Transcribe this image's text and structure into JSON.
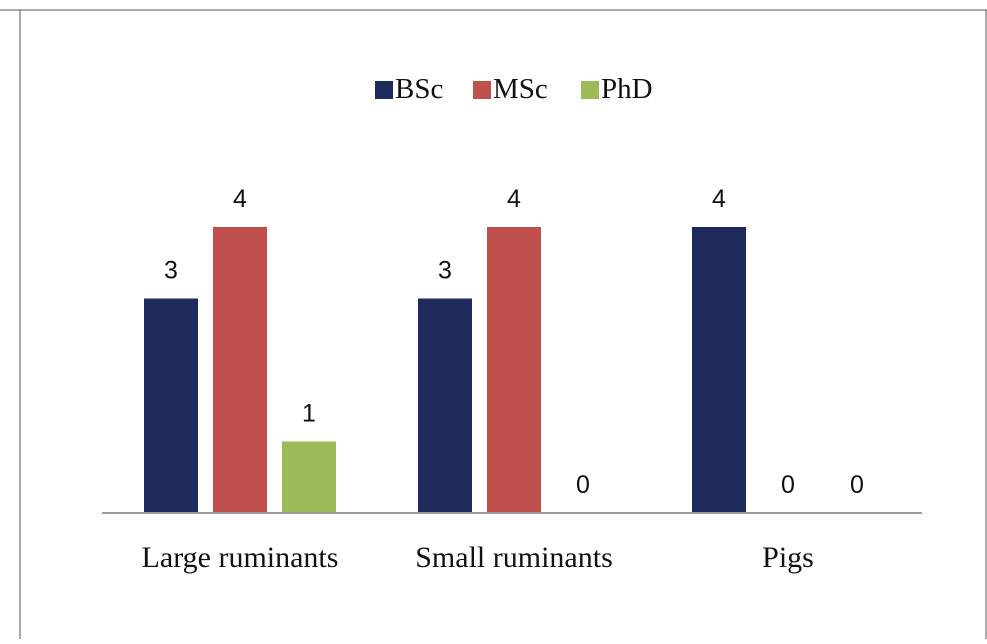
{
  "chart_data": {
    "type": "bar",
    "title": "",
    "xlabel": "",
    "ylabel": "",
    "categories": [
      "Large ruminants",
      "Small ruminants",
      "Pigs"
    ],
    "series": [
      {
        "name": "BSc",
        "color": "#1f2a5c",
        "values": [
          3,
          3,
          4
        ]
      },
      {
        "name": "MSc",
        "color": "#c0504d",
        "values": [
          4,
          4,
          0
        ]
      },
      {
        "name": "PhD",
        "color": "#9bbb59",
        "values": [
          1,
          0,
          0
        ]
      }
    ],
    "ylim": [
      0,
      5
    ],
    "grid": false,
    "legend_position": "top-center",
    "data_labels": true,
    "axis_color": "#9a9a9a"
  }
}
